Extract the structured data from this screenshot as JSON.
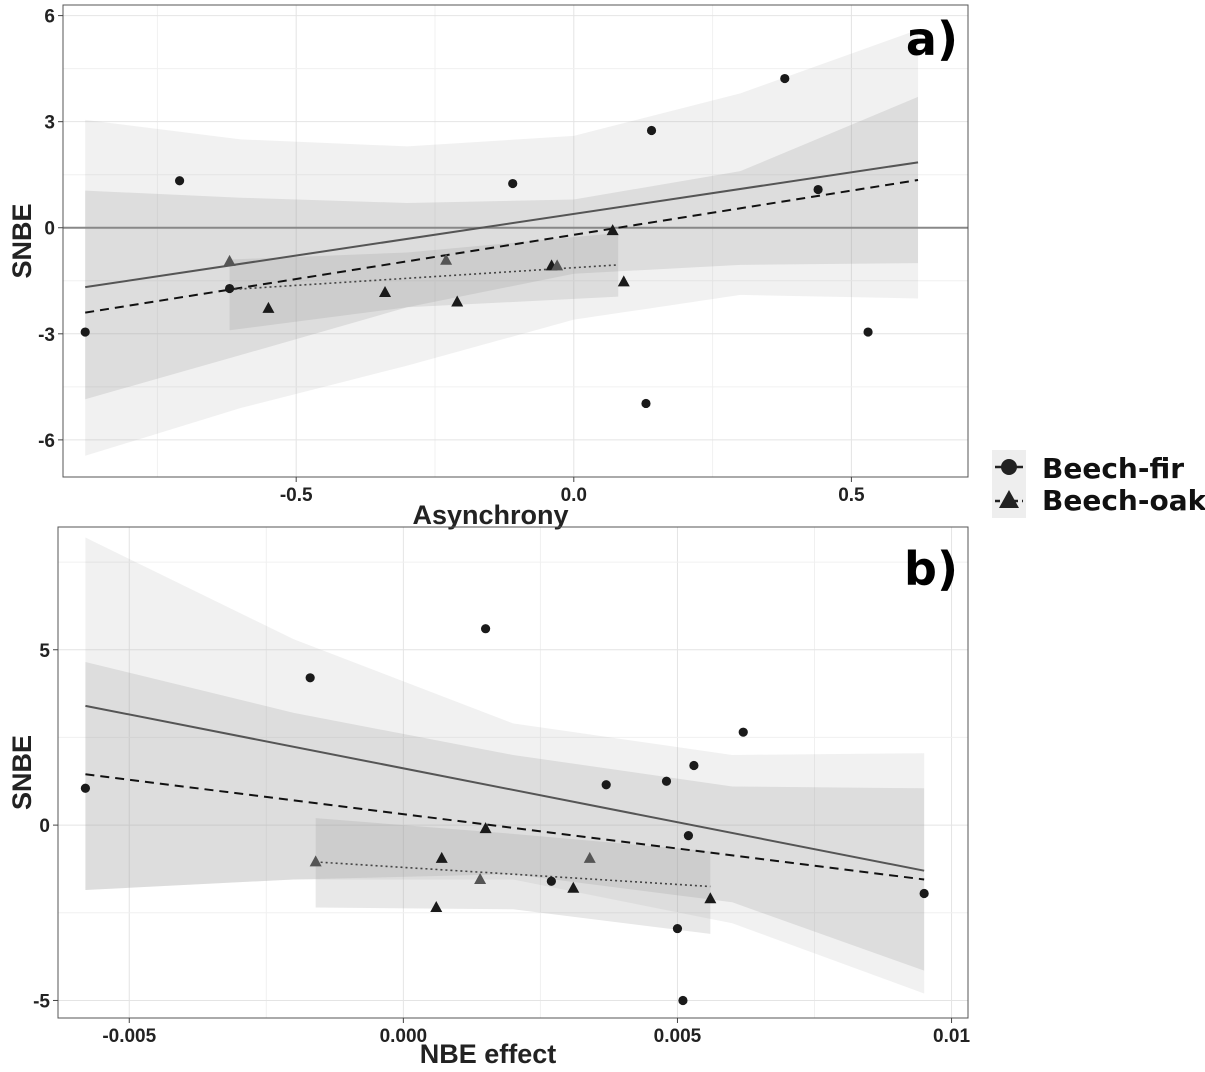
{
  "legend": {
    "entries": [
      {
        "label": "Beech-fir",
        "shape": "circle",
        "line": "solid"
      },
      {
        "label": "Beech-oak",
        "shape": "triangle",
        "line": "dashed"
      }
    ]
  },
  "chart_data": [
    {
      "type": "scatter",
      "panel_label": "a)",
      "xlabel": "Asynchrony",
      "ylabel": "SNBE",
      "xlim": [
        -0.92,
        0.71
      ],
      "ylim": [
        -7.05,
        6.3
      ],
      "x_ticks": [
        -0.5,
        0.0,
        0.5
      ],
      "x_tick_labels": [
        "-0.5",
        "0.0",
        "0.5"
      ],
      "y_ticks": [
        -6,
        -3,
        0,
        3,
        6
      ],
      "y_tick_labels": [
        "-6",
        "-3",
        "0",
        "3",
        "6"
      ],
      "grid": true,
      "reference_line_y": 0,
      "series": [
        {
          "name": "Beech-fir",
          "marker": "circle",
          "points": [
            [
              -0.88,
              -2.95
            ],
            [
              -0.71,
              1.33
            ],
            [
              -0.62,
              -1.72
            ],
            [
              -0.11,
              1.25
            ],
            [
              0.14,
              2.75
            ],
            [
              0.13,
              -4.97
            ],
            [
              0.38,
              4.22
            ],
            [
              0.44,
              1.08
            ],
            [
              0.53,
              -2.95
            ]
          ]
        },
        {
          "name": "Beech-oak",
          "marker": "triangle",
          "points": [
            [
              -0.62,
              -0.95
            ],
            [
              -0.55,
              -2.28
            ],
            [
              -0.34,
              -1.83
            ],
            [
              -0.23,
              -0.92
            ],
            [
              -0.21,
              -2.1
            ],
            [
              -0.04,
              -1.08
            ],
            [
              -0.03,
              -1.08
            ],
            [
              0.07,
              -0.08
            ],
            [
              0.09,
              -1.53
            ]
          ]
        }
      ],
      "fits": [
        {
          "style": "solid",
          "x": [
            -0.88,
            0.62
          ],
          "y": [
            -1.68,
            1.85
          ]
        },
        {
          "style": "dashed",
          "x": [
            -0.88,
            0.62
          ],
          "y": [
            -2.4,
            1.35
          ]
        },
        {
          "style": "dotted",
          "x": [
            -0.62,
            0.08
          ],
          "y": [
            -1.75,
            -1.05
          ]
        }
      ],
      "bands": [
        {
          "x": [
            -0.88,
            -0.6,
            -0.3,
            0.0,
            0.3,
            0.62
          ],
          "upper": [
            1.05,
            0.85,
            0.7,
            0.8,
            1.6,
            3.7
          ],
          "lower": [
            -4.85,
            -3.6,
            -2.25,
            -1.3,
            -1.05,
            -1.0
          ]
        },
        {
          "x": [
            -0.88,
            -0.6,
            -0.3,
            0.0,
            0.3,
            0.62
          ],
          "upper": [
            3.05,
            2.5,
            2.3,
            2.6,
            3.8,
            5.6
          ],
          "lower": [
            -6.45,
            -5.1,
            -3.9,
            -2.6,
            -1.9,
            -2.0
          ]
        },
        {
          "x": [
            -0.62,
            -0.3,
            0.08
          ],
          "upper": [
            -0.9,
            -0.7,
            -0.15
          ],
          "lower": [
            -2.9,
            -2.25,
            -1.95
          ]
        }
      ]
    },
    {
      "type": "scatter",
      "panel_label": "b)",
      "xlabel": "NBE effect",
      "ylabel": "SNBE",
      "xlim": [
        -0.0063,
        0.0103
      ],
      "ylim": [
        -5.5,
        8.5
      ],
      "x_ticks": [
        -0.005,
        0.0,
        0.005,
        0.01
      ],
      "x_tick_labels": [
        "-0.005",
        "0.000",
        "0.005",
        "0.01"
      ],
      "y_ticks": [
        -5,
        0,
        5
      ],
      "y_tick_labels": [
        "-5",
        "0",
        "5"
      ],
      "grid": true,
      "series": [
        {
          "name": "Beech-fir",
          "marker": "circle",
          "points": [
            [
              -0.0058,
              1.05
            ],
            [
              -0.0017,
              4.2
            ],
            [
              0.0015,
              5.6
            ],
            [
              0.0027,
              -1.6
            ],
            [
              0.0037,
              1.15
            ],
            [
              0.0048,
              1.25
            ],
            [
              0.0052,
              -0.3
            ],
            [
              0.0053,
              1.7
            ],
            [
              0.005,
              -2.95
            ],
            [
              0.0051,
              -5.0
            ],
            [
              0.0062,
              2.65
            ],
            [
              0.0095,
              -1.95
            ]
          ]
        },
        {
          "name": "Beech-oak",
          "marker": "triangle",
          "points": [
            [
              -0.0016,
              -1.05
            ],
            [
              0.0006,
              -2.35
            ],
            [
              0.0007,
              -0.95
            ],
            [
              0.0014,
              -1.55
            ],
            [
              0.0015,
              -0.1
            ],
            [
              0.0031,
              -1.8
            ],
            [
              0.0034,
              -0.95
            ],
            [
              0.0056,
              -2.1
            ]
          ]
        }
      ],
      "fits": [
        {
          "style": "solid",
          "x": [
            -0.0058,
            0.0095
          ],
          "y": [
            3.4,
            -1.3
          ]
        },
        {
          "style": "dashed",
          "x": [
            -0.0058,
            0.0095
          ],
          "y": [
            1.45,
            -1.55
          ]
        },
        {
          "style": "dotted",
          "x": [
            -0.0016,
            0.0056
          ],
          "y": [
            -1.05,
            -1.75
          ]
        }
      ],
      "bands": [
        {
          "x": [
            -0.0058,
            -0.002,
            0.002,
            0.006,
            0.0095
          ],
          "upper": [
            4.65,
            3.2,
            2.0,
            1.1,
            1.05
          ],
          "lower": [
            -1.85,
            -1.55,
            -1.4,
            -2.2,
            -4.15
          ]
        },
        {
          "x": [
            -0.0058,
            -0.002,
            0.002,
            0.006,
            0.0095
          ],
          "upper": [
            8.2,
            5.3,
            2.9,
            2.0,
            2.05
          ],
          "lower": [
            -1.85,
            -1.55,
            -1.55,
            -2.8,
            -4.8
          ]
        },
        {
          "x": [
            -0.0016,
            0.002,
            0.0056
          ],
          "upper": [
            0.2,
            -0.25,
            -0.75
          ],
          "lower": [
            -2.35,
            -2.4,
            -3.1
          ]
        }
      ]
    }
  ]
}
